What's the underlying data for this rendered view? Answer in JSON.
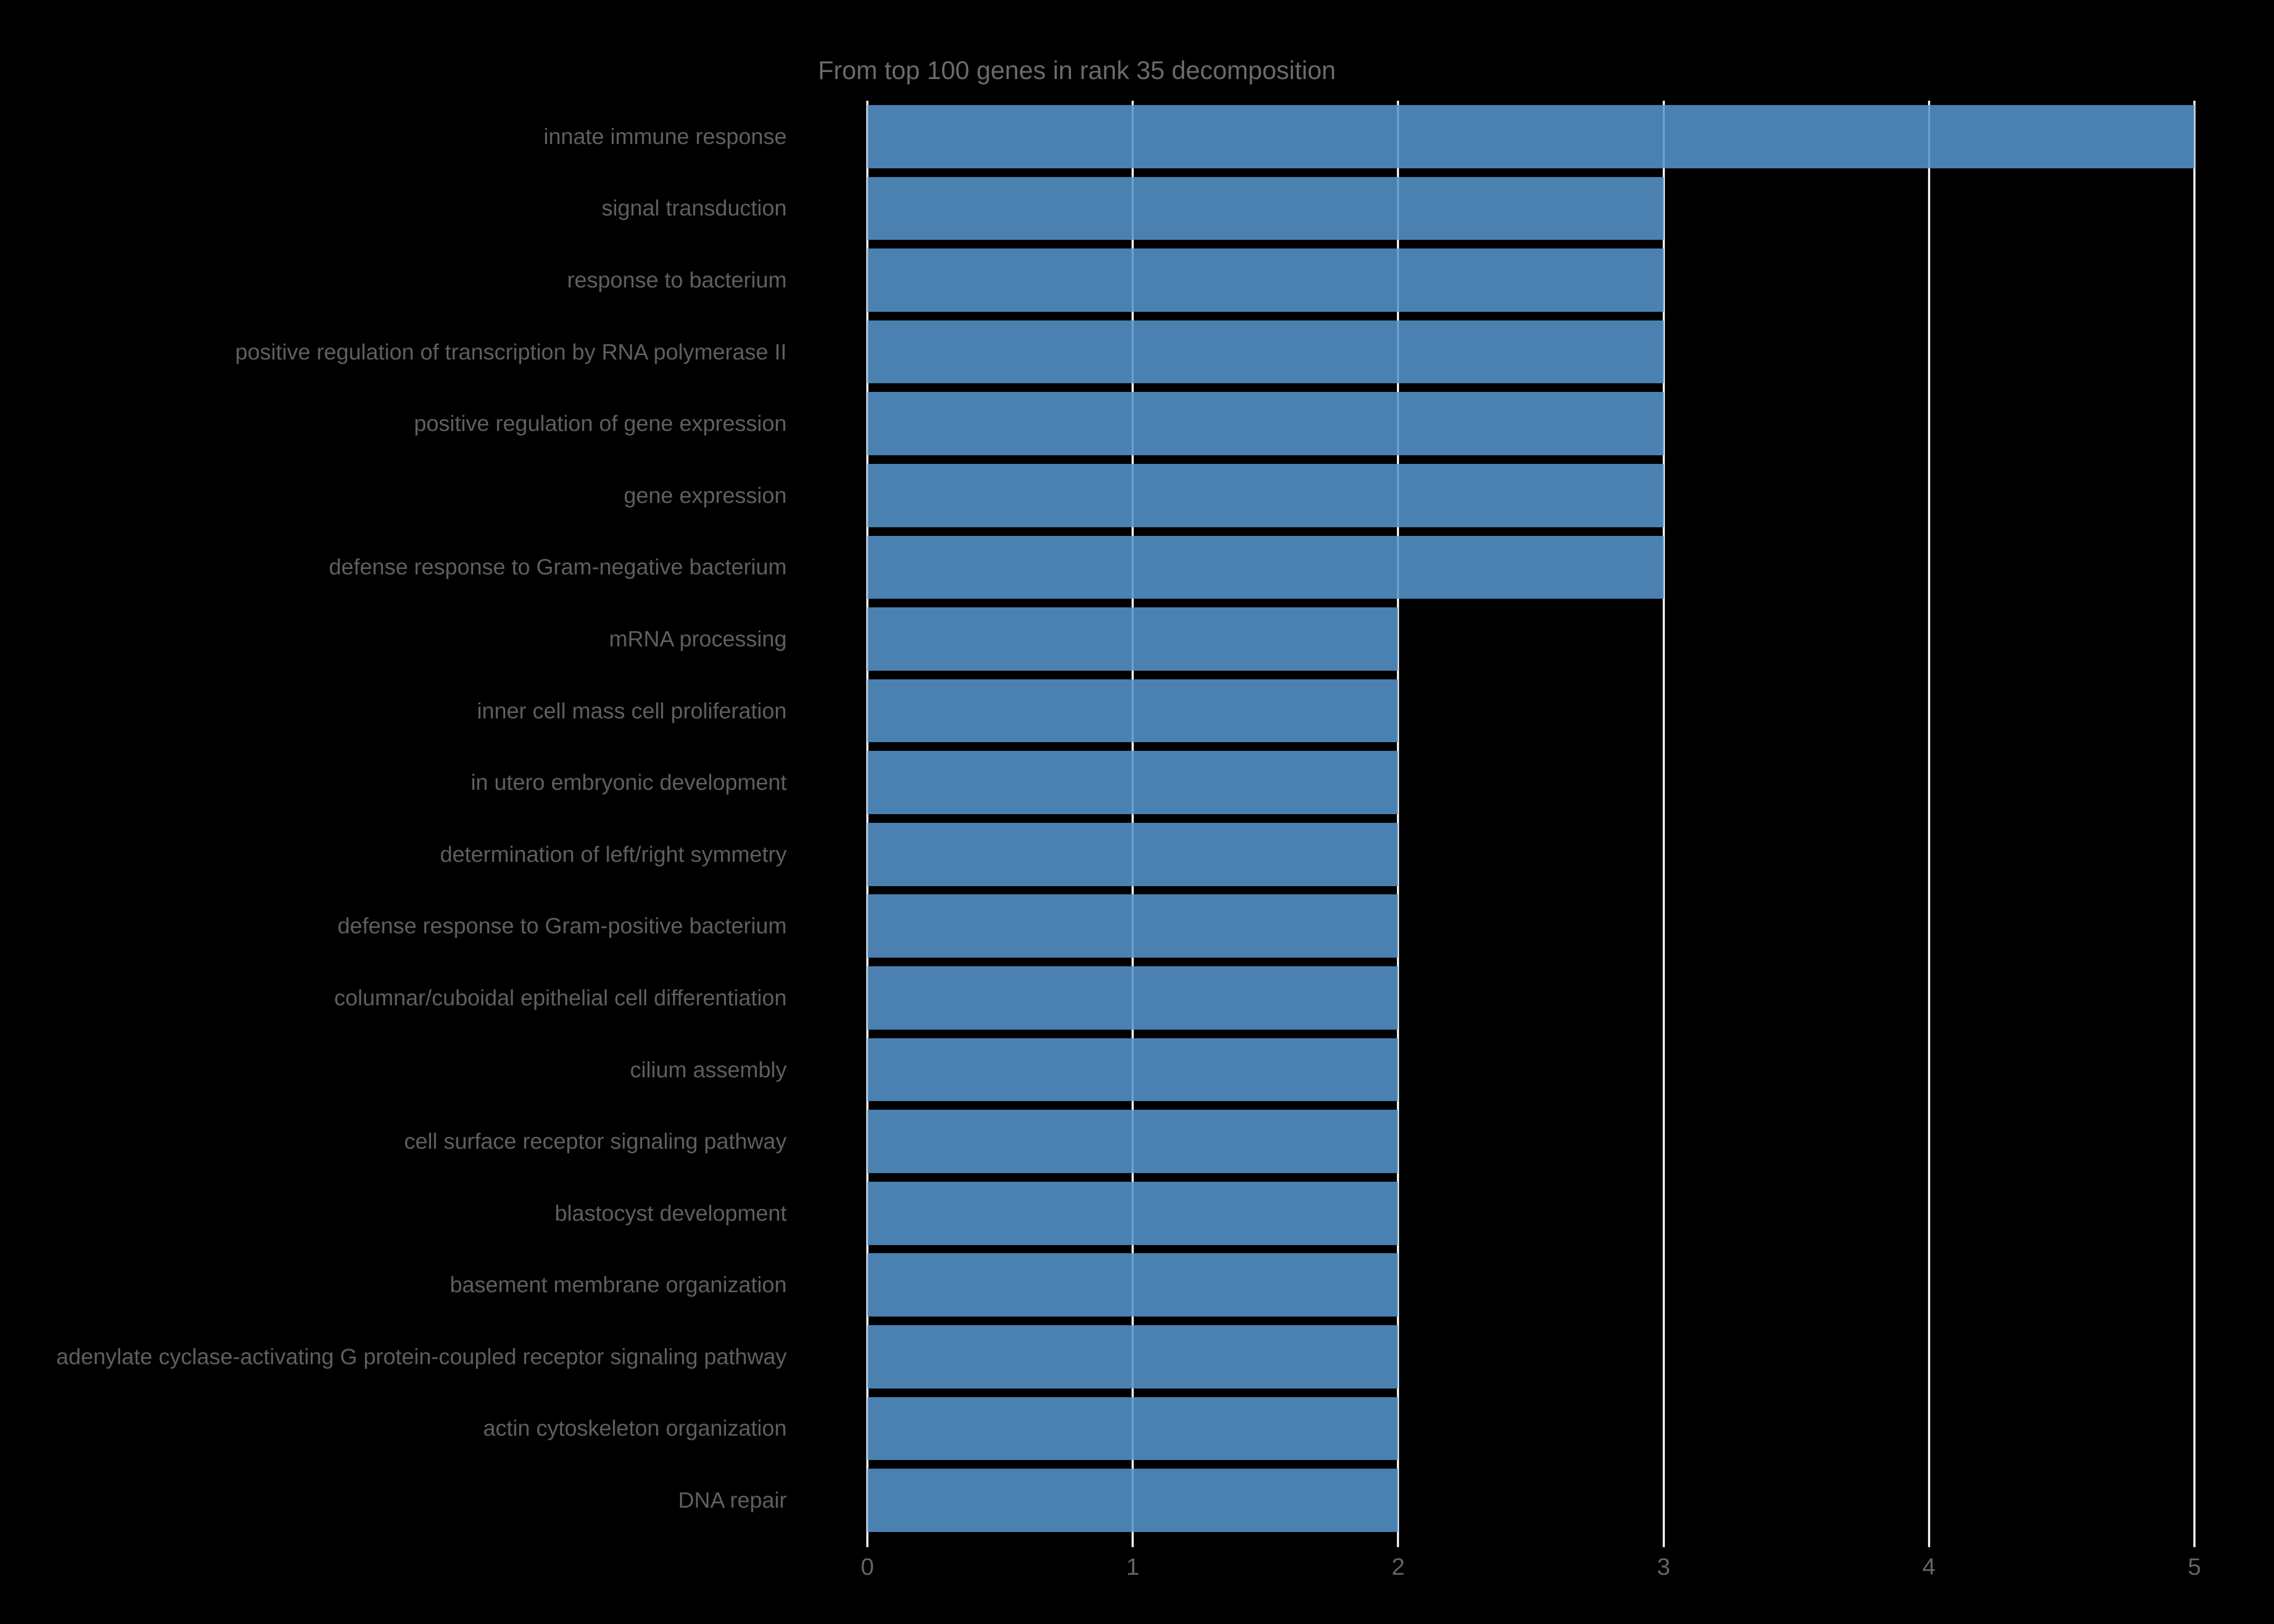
{
  "chart_data": {
    "type": "bar",
    "orientation": "horizontal",
    "title": "From top 100 genes in rank 35 decomposition",
    "categories": [
      "innate immune response",
      "signal transduction",
      "response to bacterium",
      "positive regulation of transcription by RNA polymerase II",
      "positive regulation of gene expression",
      "gene expression",
      "defense response to Gram-negative bacterium",
      "mRNA processing",
      "inner cell mass cell proliferation",
      "in utero embryonic development",
      "determination of left/right symmetry",
      "defense response to Gram-positive bacterium",
      "columnar/cuboidal epithelial cell differentiation",
      "cilium assembly",
      "cell surface receptor signaling pathway",
      "blastocyst development",
      "basement membrane organization",
      "adenylate cyclase-activating G protein-coupled receptor signaling pathway",
      "actin cytoskeleton organization",
      "DNA repair"
    ],
    "values": [
      5,
      3,
      3,
      3,
      3,
      3,
      3,
      2,
      2,
      2,
      2,
      2,
      2,
      2,
      2,
      2,
      2,
      2,
      2,
      2
    ],
    "xlabel": "",
    "ylabel": "",
    "xlim": [
      0,
      5
    ],
    "xticks": [
      "0",
      "1",
      "2",
      "3",
      "4",
      "5"
    ],
    "grid": "vertical gridlines on, drawn in white behind semi-transparent bars",
    "legend": "none",
    "colors": {
      "background": "#000000",
      "bar_fill": "rgba(85,148,203,0.87)",
      "bar_apparent": "#4a81b1",
      "gridline": "#ececec",
      "title_text": "#6a6a6a",
      "category_label_text": "#5f5f5f",
      "tick_label_text": "#646464"
    }
  }
}
